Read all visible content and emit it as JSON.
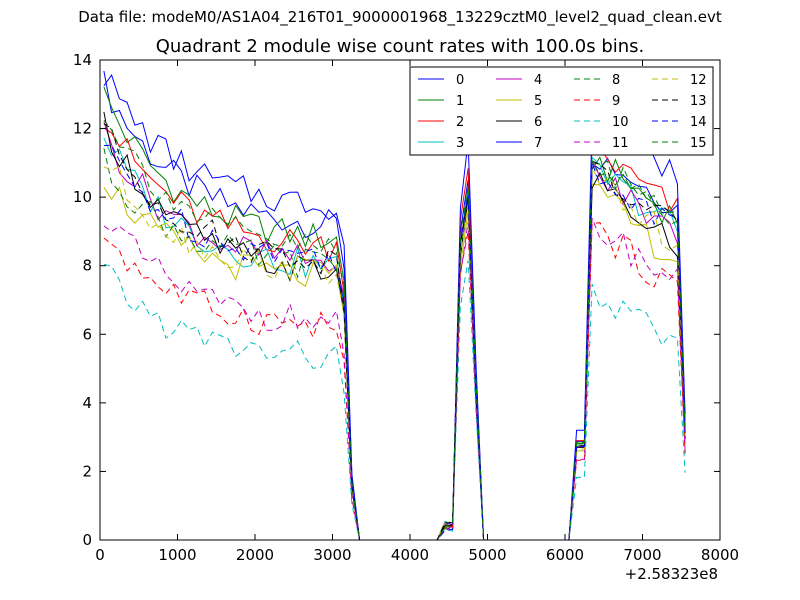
{
  "header": {
    "suptitle": "Data file: modeM0/AS1A04_216T01_9000001968_13229cztM0_level2_quad_clean.evt",
    "title": "Quadrant 2 module wise count rates with 100.0s bins."
  },
  "chart_data": {
    "type": "line",
    "title": "Quadrant 2 module wise count rates with 100.0s bins.",
    "xlabel": "",
    "ylabel": "",
    "xlim": [
      0,
      8000
    ],
    "ylim": [
      0,
      14
    ],
    "x_offset_label": "+2.58323e8",
    "xticks": [
      0,
      1000,
      2000,
      3000,
      4000,
      5000,
      6000,
      7000,
      8000
    ],
    "yticks": [
      0,
      2,
      4,
      6,
      8,
      10,
      12,
      14
    ],
    "legend_position": "top-right",
    "legend_columns": 4,
    "segments": [
      {
        "start": 50,
        "end": 3150
      },
      {
        "start": 4550,
        "end": 4850
      },
      {
        "start": 6250,
        "end": 7550
      }
    ],
    "series": [
      {
        "name": "0",
        "color": "#0000ff",
        "dash": "solid",
        "start": 13.3,
        "plateau": 9.0,
        "s3start": 11.5,
        "s3end": 9.6,
        "peak2": 10.6
      },
      {
        "name": "1",
        "color": "#008000",
        "dash": "solid",
        "start": 13.0,
        "plateau": 8.6,
        "s3start": 11.3,
        "s3end": 9.3,
        "peak2": 10.3
      },
      {
        "name": "2",
        "color": "#ff0000",
        "dash": "solid",
        "start": 12.4,
        "plateau": 8.4,
        "s3start": 11.6,
        "s3end": 9.5,
        "peak2": 10.8
      },
      {
        "name": "3",
        "color": "#00bfbf",
        "dash": "solid",
        "start": 11.8,
        "plateau": 7.8,
        "s3start": 11.0,
        "s3end": 9.0,
        "peak2": 10.2
      },
      {
        "name": "4",
        "color": "#bf00bf",
        "dash": "solid",
        "start": 11.9,
        "plateau": 7.9,
        "s3start": 10.9,
        "s3end": 8.8,
        "peak2": 10.1
      },
      {
        "name": "5",
        "color": "#bfbf00",
        "dash": "solid",
        "start": 10.6,
        "plateau": 7.5,
        "s3start": 10.4,
        "s3end": 8.0,
        "peak2": 9.6
      },
      {
        "name": "6",
        "color": "#000000",
        "dash": "solid",
        "start": 12.2,
        "plateau": 7.6,
        "s3start": 10.8,
        "s3end": 8.4,
        "peak2": 9.8
      },
      {
        "name": "7",
        "color": "#0000ff",
        "dash": "solid",
        "start": 13.6,
        "plateau": 9.6,
        "s3start": 12.8,
        "s3end": 10.5,
        "peak2": 11.6
      },
      {
        "name": "8",
        "color": "#008000",
        "dash": "dashed",
        "start": 11.0,
        "plateau": 7.9,
        "s3start": 11.2,
        "s3end": 9.4,
        "peak2": 9.9
      },
      {
        "name": "9",
        "color": "#ff0000",
        "dash": "dashed",
        "start": 9.0,
        "plateau": 6.1,
        "s3start": 9.3,
        "s3end": 7.2,
        "peak2": 9.0
      },
      {
        "name": "10",
        "color": "#00bfbf",
        "dash": "dashed",
        "start": 7.8,
        "plateau": 5.2,
        "s3start": 7.3,
        "s3end": 5.6,
        "peak2": 8.2
      },
      {
        "name": "11",
        "color": "#bf00bf",
        "dash": "dashed",
        "start": 9.6,
        "plateau": 6.2,
        "s3start": 9.4,
        "s3end": 7.4,
        "peak2": 9.2
      },
      {
        "name": "12",
        "color": "#bfbf00",
        "dash": "dashed",
        "start": 11.1,
        "plateau": 7.7,
        "s3start": 10.6,
        "s3end": 8.6,
        "peak2": 9.7
      },
      {
        "name": "13",
        "color": "#000000",
        "dash": "dashed",
        "start": 12.0,
        "plateau": 8.0,
        "s3start": 11.0,
        "s3end": 8.9,
        "peak2": 10.0
      },
      {
        "name": "14",
        "color": "#0000ff",
        "dash": "dashed",
        "start": 11.5,
        "plateau": 8.1,
        "s3start": 10.9,
        "s3end": 9.0,
        "peak2": 10.1
      },
      {
        "name": "15",
        "color": "#008000",
        "dash": "dashed",
        "start": 12.6,
        "plateau": 8.3,
        "s3start": 11.4,
        "s3end": 9.2,
        "peak2": 10.4
      }
    ]
  }
}
